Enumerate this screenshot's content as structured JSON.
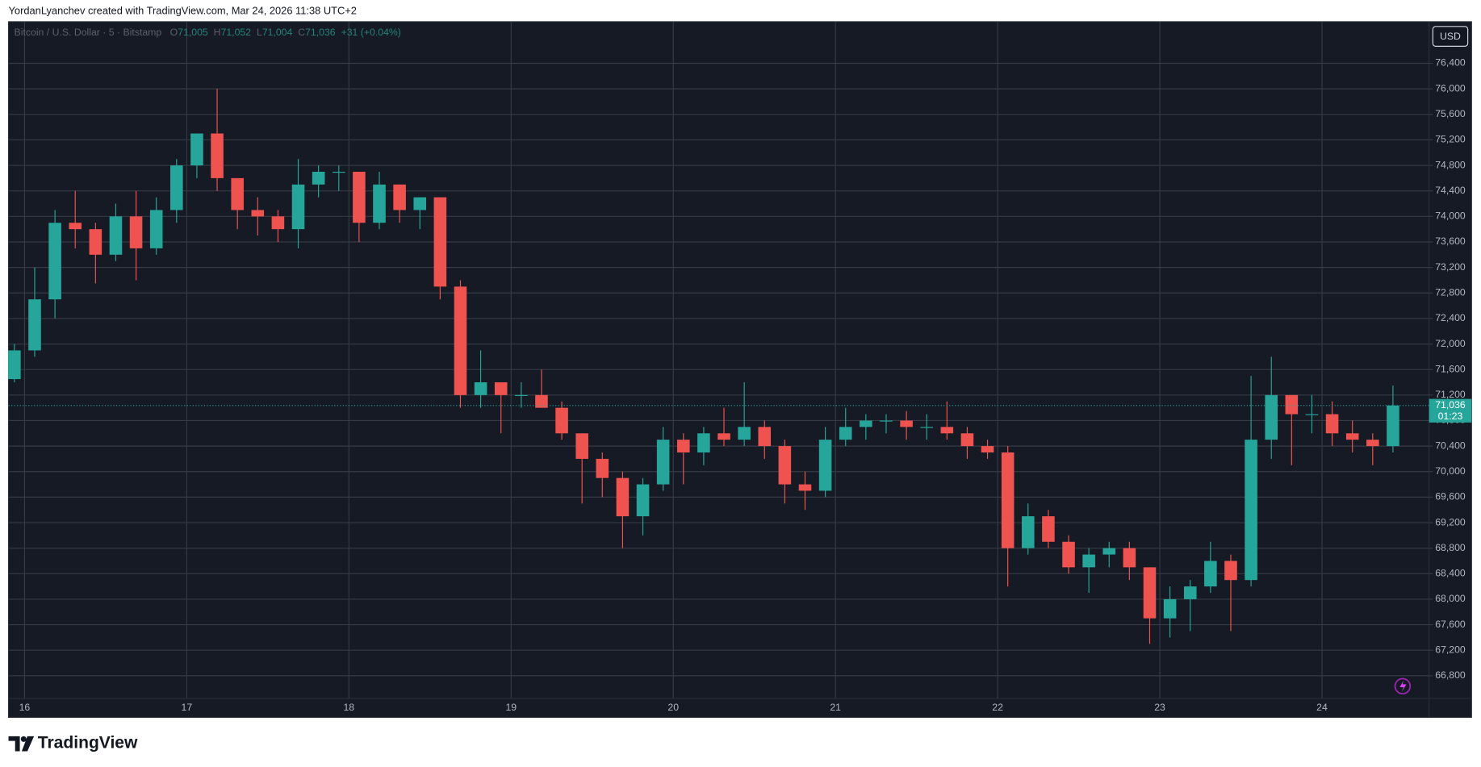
{
  "chart_data": {
    "type": "candlestick",
    "credit": "YordanLyanchev created with TradingView.com, Mar 24, 2026 11:38 UTC+2",
    "symbol": "Bitcoin / U.S. Dollar · 5 · Bitstamp",
    "last_bar": {
      "open": {
        "value": 71005,
        "label": "71,005"
      },
      "high": {
        "value": 71052,
        "label": "71,052"
      },
      "low": {
        "value": 71004,
        "label": "71,004"
      },
      "close": {
        "value": 71036,
        "label": "71,036"
      },
      "change": "+31 (+0.04%)",
      "countdown": "01:23"
    },
    "ohlc_letters": [
      "O",
      "H",
      "L",
      "C"
    ],
    "currency": "USD",
    "brand": "TradingView",
    "up_color": "#26a69a",
    "down_color": "#ef5350",
    "grid": true,
    "x": [
      15.9375,
      16.0625,
      16.1875,
      16.3125,
      16.4375,
      16.5625,
      16.6875,
      16.8125,
      16.9375,
      17.0625,
      17.1875,
      17.3125,
      17.4375,
      17.5625,
      17.6875,
      17.8125,
      17.9375,
      18.0625,
      18.1875,
      18.3125,
      18.4375,
      18.5625,
      18.6875,
      18.8125,
      18.9375,
      19.0625,
      19.1875,
      19.3125,
      19.4375,
      19.5625,
      19.6875,
      19.8125,
      19.9375,
      20.0625,
      20.1875,
      20.3125,
      20.4375,
      20.5625,
      20.6875,
      20.8125,
      20.9375,
      21.0625,
      21.1875,
      21.3125,
      21.4375,
      21.5625,
      21.6875,
      21.8125,
      21.9375,
      22.0625,
      22.1875,
      22.3125,
      22.4375,
      22.5625,
      22.6875,
      22.8125,
      22.9375,
      23.0625,
      23.1875,
      23.3125,
      23.4375,
      23.5625,
      23.6875,
      23.8125,
      23.9375,
      24.0625,
      24.1875,
      24.3125,
      24.4375
    ],
    "open": [
      71450,
      71900,
      72700,
      73900,
      73800,
      73400,
      74000,
      73500,
      74100,
      74800,
      75300,
      74600,
      74100,
      74000,
      73800,
      74500,
      74700,
      74700,
      73900,
      74500,
      74100,
      74300,
      72900,
      71200,
      71400,
      71200,
      71200,
      71000,
      70600,
      70200,
      69900,
      69300,
      69800,
      70500,
      70300,
      70600,
      70500,
      70700,
      70400,
      69800,
      69700,
      70500,
      70700,
      70800,
      70800,
      70700,
      70700,
      70600,
      70400,
      70300,
      68800,
      69300,
      68900,
      68500,
      68700,
      68800,
      68500,
      67700,
      68000,
      68200,
      68600,
      68300,
      70500,
      71200,
      70900,
      70900,
      70600,
      70500,
      70400
    ],
    "high": [
      72000,
      73200,
      74100,
      74400,
      73900,
      74200,
      74400,
      74300,
      74900,
      75300,
      76000,
      74600,
      74300,
      74100,
      74900,
      74800,
      74800,
      74700,
      74700,
      74500,
      74300,
      74300,
      73000,
      71900,
      71400,
      71400,
      71600,
      71100,
      70600,
      70300,
      70000,
      69900,
      70700,
      70600,
      70700,
      71000,
      71400,
      70800,
      70500,
      70000,
      70700,
      71000,
      70900,
      70900,
      70950,
      70900,
      71100,
      70700,
      70500,
      70400,
      69500,
      69400,
      69000,
      68800,
      68900,
      68900,
      68500,
      68200,
      68300,
      68900,
      68700,
      71500,
      71800,
      71200,
      71200,
      71100,
      70800,
      70600,
      71350
    ],
    "low": [
      71400,
      71800,
      72400,
      73500,
      72950,
      73300,
      73000,
      73400,
      73900,
      74600,
      74400,
      73800,
      73700,
      73600,
      73500,
      74300,
      74400,
      73600,
      73800,
      73900,
      73800,
      72700,
      71000,
      71000,
      70600,
      71000,
      71000,
      70500,
      69500,
      69600,
      68800,
      69000,
      69700,
      69800,
      70100,
      70400,
      70400,
      70200,
      69500,
      69400,
      69600,
      70400,
      70500,
      70600,
      70500,
      70500,
      70500,
      70200,
      70200,
      68200,
      68700,
      68800,
      68400,
      68100,
      68500,
      68300,
      67300,
      67400,
      67500,
      68100,
      67500,
      68200,
      70200,
      70100,
      70600,
      70400,
      70300,
      70100,
      70300
    ],
    "close": [
      71900,
      72700,
      73900,
      73800,
      73400,
      74000,
      73500,
      74100,
      74800,
      75300,
      74600,
      74100,
      74000,
      73800,
      74500,
      74700,
      74700,
      73900,
      74500,
      74100,
      74300,
      72900,
      71200,
      71400,
      71200,
      71200,
      71000,
      70600,
      70200,
      69900,
      69300,
      69800,
      70500,
      70300,
      70600,
      70500,
      70700,
      70400,
      69800,
      69700,
      70500,
      70700,
      70800,
      70800,
      70700,
      70700,
      70600,
      70400,
      70300,
      68800,
      69300,
      68900,
      68500,
      68700,
      68800,
      68500,
      67700,
      68000,
      68200,
      68600,
      68300,
      70500,
      71200,
      70900,
      70900,
      70600,
      70500,
      70400,
      71036
    ],
    "xlim": [
      15.901,
      24.66
    ],
    "xticks": [
      16,
      17,
      18,
      19,
      20,
      21,
      22,
      23,
      24
    ],
    "ylim": [
      66444,
      77052
    ],
    "yticks": [
      {
        "value": 66800,
        "label": "66,800"
      },
      {
        "value": 67200,
        "label": "67,200"
      },
      {
        "value": 67600,
        "label": "67,600"
      },
      {
        "value": 68000,
        "label": "68,000"
      },
      {
        "value": 68400,
        "label": "68,400"
      },
      {
        "value": 68800,
        "label": "68,800"
      },
      {
        "value": 69200,
        "label": "69,200"
      },
      {
        "value": 69600,
        "label": "69,600"
      },
      {
        "value": 70000,
        "label": "70,000"
      },
      {
        "value": 70400,
        "label": "70,400"
      },
      {
        "value": 70800,
        "label": "70,800"
      },
      {
        "value": 71200,
        "label": "71,200"
      },
      {
        "value": 71600,
        "label": "71,600"
      },
      {
        "value": 72000,
        "label": "72,000"
      },
      {
        "value": 72400,
        "label": "72,400"
      },
      {
        "value": 72800,
        "label": "72,800"
      },
      {
        "value": 73200,
        "label": "73,200"
      },
      {
        "value": 73600,
        "label": "73,600"
      },
      {
        "value": 74000,
        "label": "74,000"
      },
      {
        "value": 74400,
        "label": "74,400"
      },
      {
        "value": 74800,
        "label": "74,800"
      },
      {
        "value": 75200,
        "label": "75,200"
      },
      {
        "value": 75600,
        "label": "75,600"
      },
      {
        "value": 76000,
        "label": "76,000"
      },
      {
        "value": 76400,
        "label": "76,400"
      }
    ]
  }
}
